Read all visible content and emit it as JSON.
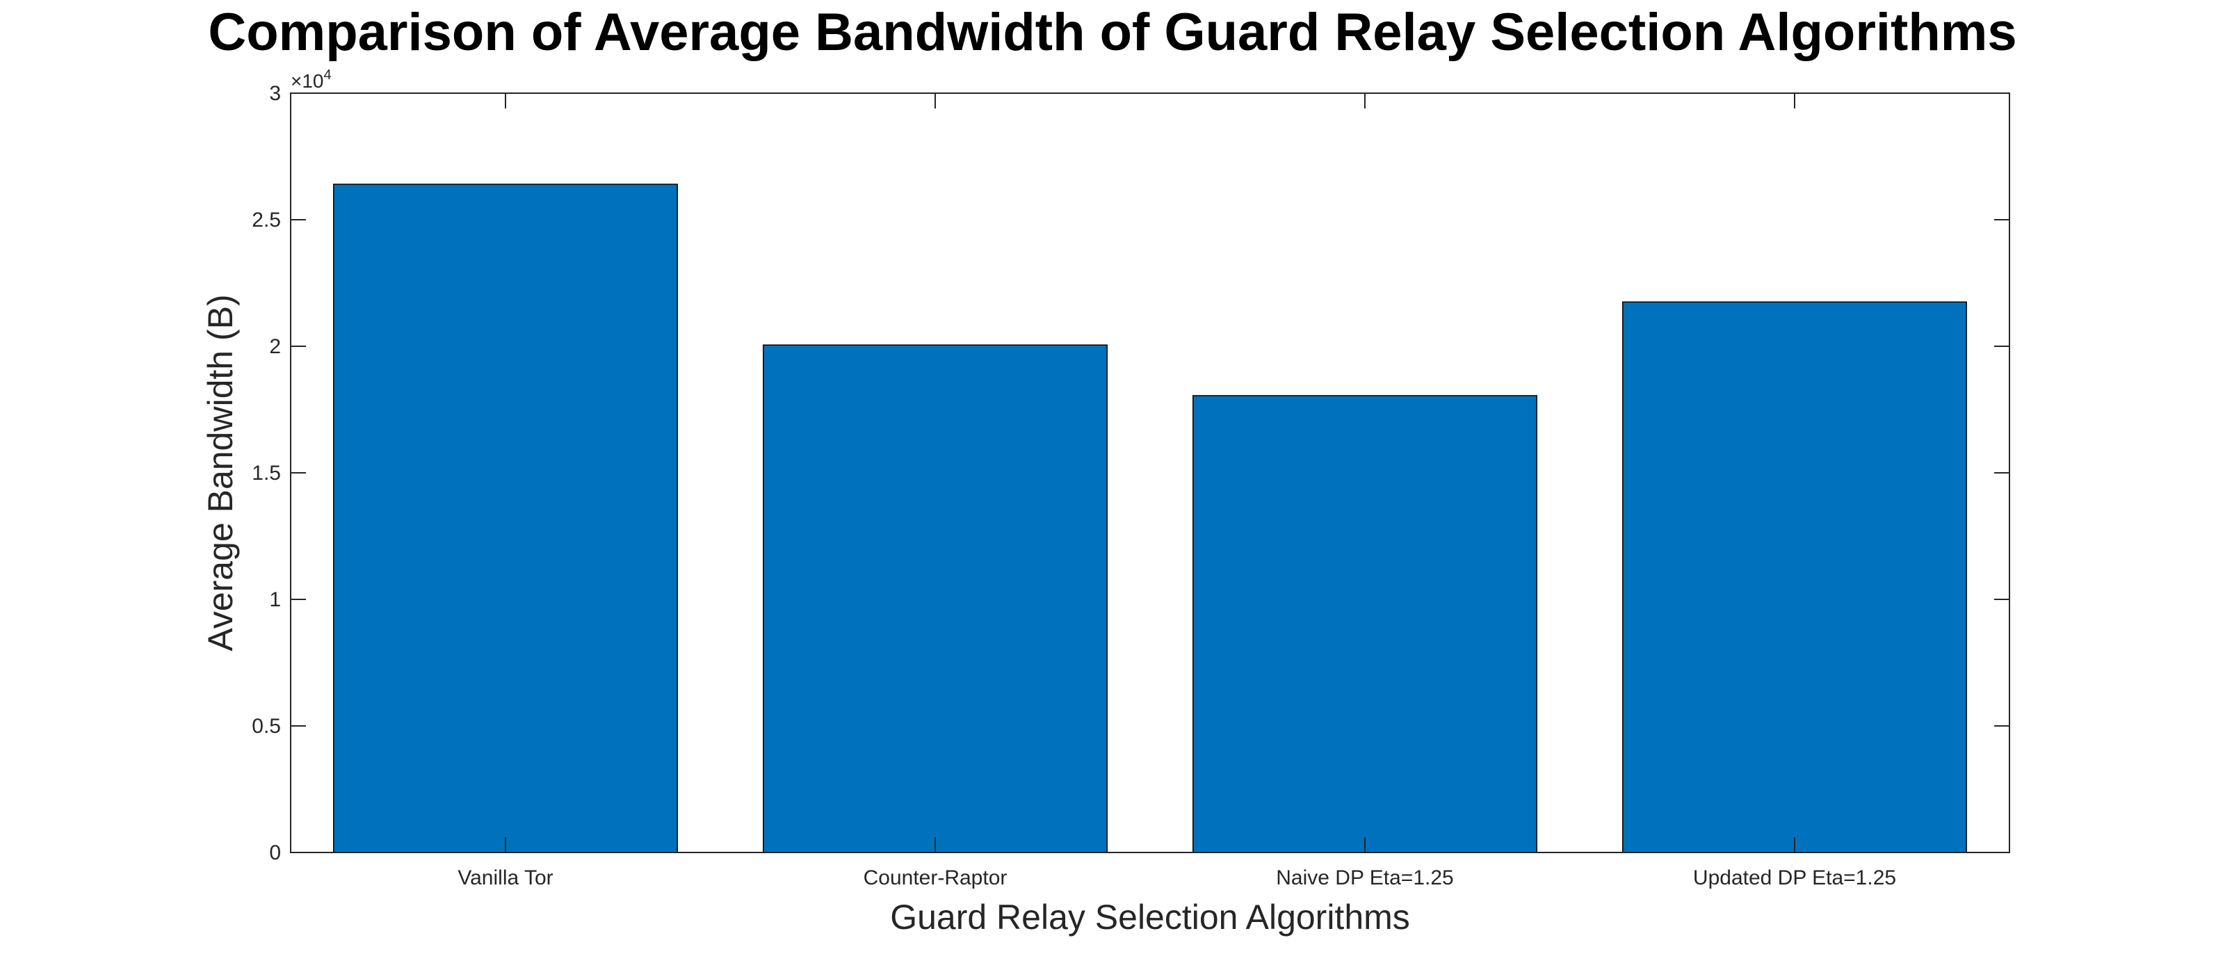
{
  "chart_data": {
    "type": "bar",
    "title": "Comparison of Average Bandwidth of Guard Relay Selection Algorithms",
    "xlabel": "Guard Relay Selection Algorithms",
    "ylabel": "Average Bandwidth (B)",
    "categories": [
      "Vanilla Tor",
      "Counter-Raptor",
      "Naive DP Eta=1.25",
      "Updated DP Eta=1.25"
    ],
    "values": [
      26400,
      20050,
      18050,
      21750
    ],
    "ylim": [
      0,
      30000
    ],
    "yticks": [
      0,
      5000,
      10000,
      15000,
      20000,
      25000,
      30000
    ],
    "ytick_labels": [
      "0",
      "0.5",
      "1",
      "1.5",
      "2",
      "2.5",
      "3"
    ],
    "y_exponent_base": "×10",
    "y_exponent_power": "4",
    "bar_color": "#0072BD",
    "grid": false,
    "legend": "none"
  }
}
